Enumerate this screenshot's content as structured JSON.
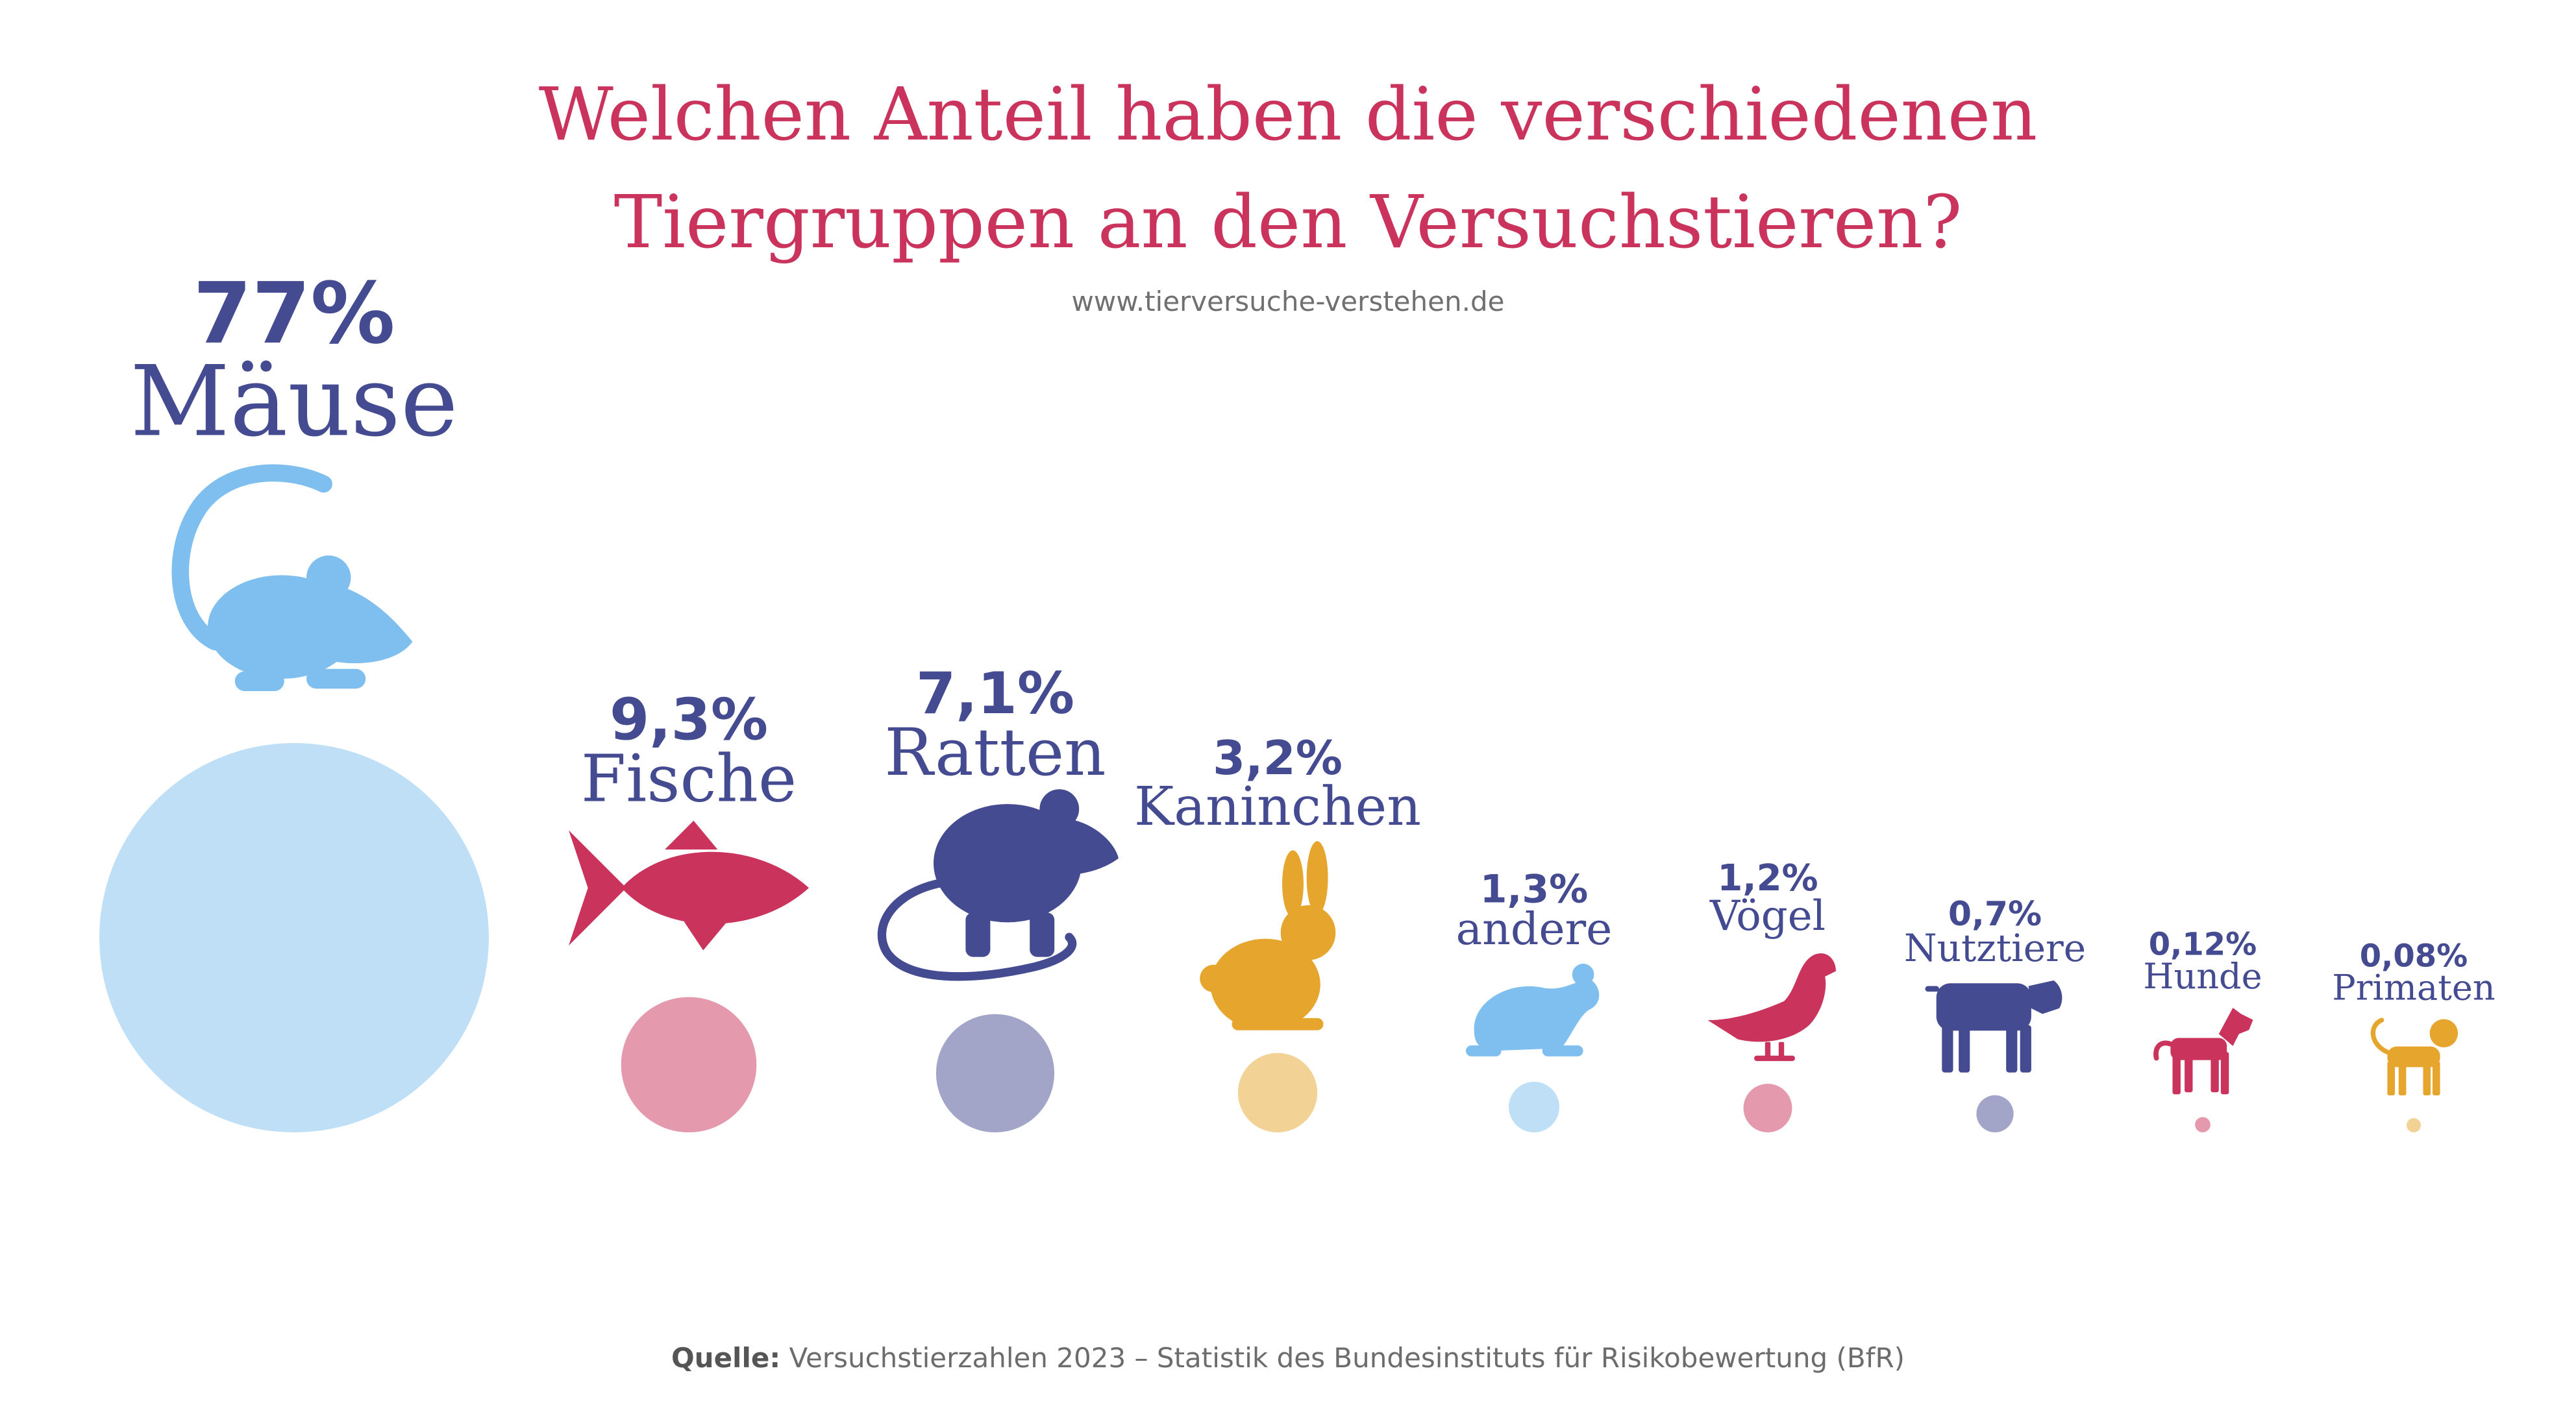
{
  "header": {
    "title_line1": "Welchen Anteil haben die verschiedenen",
    "title_line2": "Tiergruppen an den Versuchstieren?",
    "url": "www.tierversuche-verstehen.de"
  },
  "footer": {
    "source_label": "Quelle:",
    "source_text": "Versuchstierzahlen 2023 – Statistik des Bundesinstituts für Risikobewertung (BfR)"
  },
  "colors": {
    "title": "#c9335c",
    "text": "#454b91",
    "blue": "#7fbfef",
    "red": "#c9335c",
    "navy": "#454b91",
    "gold": "#e6a52c"
  },
  "chart_data": {
    "type": "bubble",
    "unit": "%",
    "categories": [
      "Mäuse",
      "Fische",
      "Ratten",
      "Kaninchen",
      "andere",
      "Vögel",
      "Nutztiere",
      "Hunde",
      "Primaten"
    ],
    "values": [
      77,
      9.3,
      7.1,
      3.2,
      1.3,
      1.2,
      0.7,
      0.12,
      0.08
    ],
    "value_labels": [
      "77%",
      "9,3%",
      "7,1%",
      "3,2%",
      "1,3%",
      "1,2%",
      "0,7%",
      "0,12%",
      "0,08%"
    ],
    "icons": [
      "mouse-icon",
      "fish-icon",
      "rat-icon",
      "rabbit-icon",
      "frog-icon",
      "bird-icon",
      "cow-icon",
      "dog-icon",
      "monkey-icon"
    ],
    "colors": [
      "#7fbfef",
      "#c9335c",
      "#454b91",
      "#e6a52c",
      "#7fbfef",
      "#c9335c",
      "#454b91",
      "#c9335c",
      "#e6a52c"
    ],
    "bubble_color_note": "bubbles are drawn in the series color at reduced opacity"
  }
}
